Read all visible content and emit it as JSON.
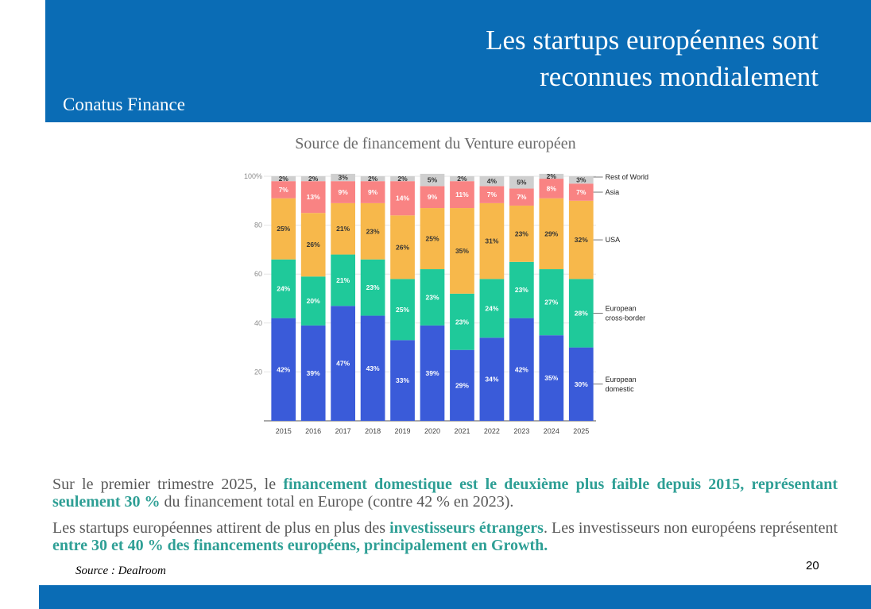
{
  "slide": {
    "title_line1": "Les startups européennes sont",
    "title_line2": "reconnues mondialement",
    "brand": "Conatus Finance",
    "chart_title": "Source de financement du Venture européen",
    "p1_text1": "Sur le premier trimestre 2025, le ",
    "p1_bold": "financement domestique est le deuxième plus faible depuis 2015, représentant seulement 30 %",
    "p1_text2": " du financement total en Europe (contre 42 % en 2023).",
    "p2_text1": "Les startups européennes attirent de plus en plus des ",
    "p2_bold1": "investisseurs étrangers",
    "p2_text2": ". Les investisseurs non européens représentent ",
    "p2_bold2": "entre 30 et 40 % des financements européens, principalement en Growth.",
    "source": "Source : Dealroom",
    "page_number": "20"
  },
  "chart_data": {
    "type": "bar",
    "stacked": true,
    "categories": [
      "2015",
      "2016",
      "2017",
      "2018",
      "2019",
      "2020",
      "2021",
      "2022",
      "2023",
      "2024",
      "2025"
    ],
    "ylim": [
      0,
      100
    ],
    "yticks": [
      "20",
      "40",
      "60",
      "80",
      "100%"
    ],
    "ytick_values": [
      20,
      40,
      60,
      80,
      100
    ],
    "series": [
      {
        "name": "European domestic",
        "color": "#3a5bd9",
        "values": [
          42,
          39,
          47,
          43,
          33,
          39,
          29,
          34,
          42,
          35,
          30
        ],
        "labels": [
          "42%",
          "39%",
          "47%",
          "43%",
          "33%",
          "39%",
          "29%",
          "34%",
          "42%",
          "35%",
          "30%"
        ],
        "text_color": "#ffffff"
      },
      {
        "name": "European cross-border",
        "color": "#1fc99a",
        "values": [
          24,
          20,
          21,
          23,
          25,
          23,
          23,
          24,
          23,
          27,
          28
        ],
        "labels": [
          "24%",
          "20%",
          "21%",
          "23%",
          "25%",
          "23%",
          "23%",
          "24%",
          "23%",
          "27%",
          "28%"
        ],
        "text_color": "#ffffff"
      },
      {
        "name": "USA",
        "color": "#f7b84b",
        "values": [
          25,
          26,
          21,
          23,
          26,
          25,
          35,
          31,
          23,
          29,
          32
        ],
        "labels": [
          "25%",
          "26%",
          "21%",
          "23%",
          "26%",
          "25%",
          "35%",
          "31%",
          "23%",
          "29%",
          "32%"
        ],
        "text_color": "#333333"
      },
      {
        "name": "Asia",
        "color": "#f98383",
        "values": [
          7,
          13,
          9,
          9,
          14,
          9,
          11,
          7,
          7,
          8,
          7
        ],
        "labels": [
          "7%",
          "13%",
          "9%",
          "9%",
          "14%",
          "9%",
          "11%",
          "7%",
          "7%",
          "8%",
          "7%"
        ],
        "text_color": "#ffffff"
      },
      {
        "name": "Rest of World",
        "color": "#cfcfcf",
        "values": [
          2,
          2,
          3,
          2,
          2,
          5,
          2,
          4,
          5,
          2,
          3
        ],
        "labels": [
          "2%",
          "2%",
          "3%",
          "2%",
          "2%",
          "5%",
          "2%",
          "4%",
          "5%",
          "2%",
          "3%"
        ],
        "text_color": "#333333"
      }
    ],
    "legend_lines": [
      [
        "European",
        "domestic"
      ],
      [
        "European",
        "cross-border"
      ],
      [
        "USA"
      ],
      [
        "Asia"
      ],
      [
        "Rest of World"
      ]
    ],
    "legend_position": "right (direct labels)"
  }
}
